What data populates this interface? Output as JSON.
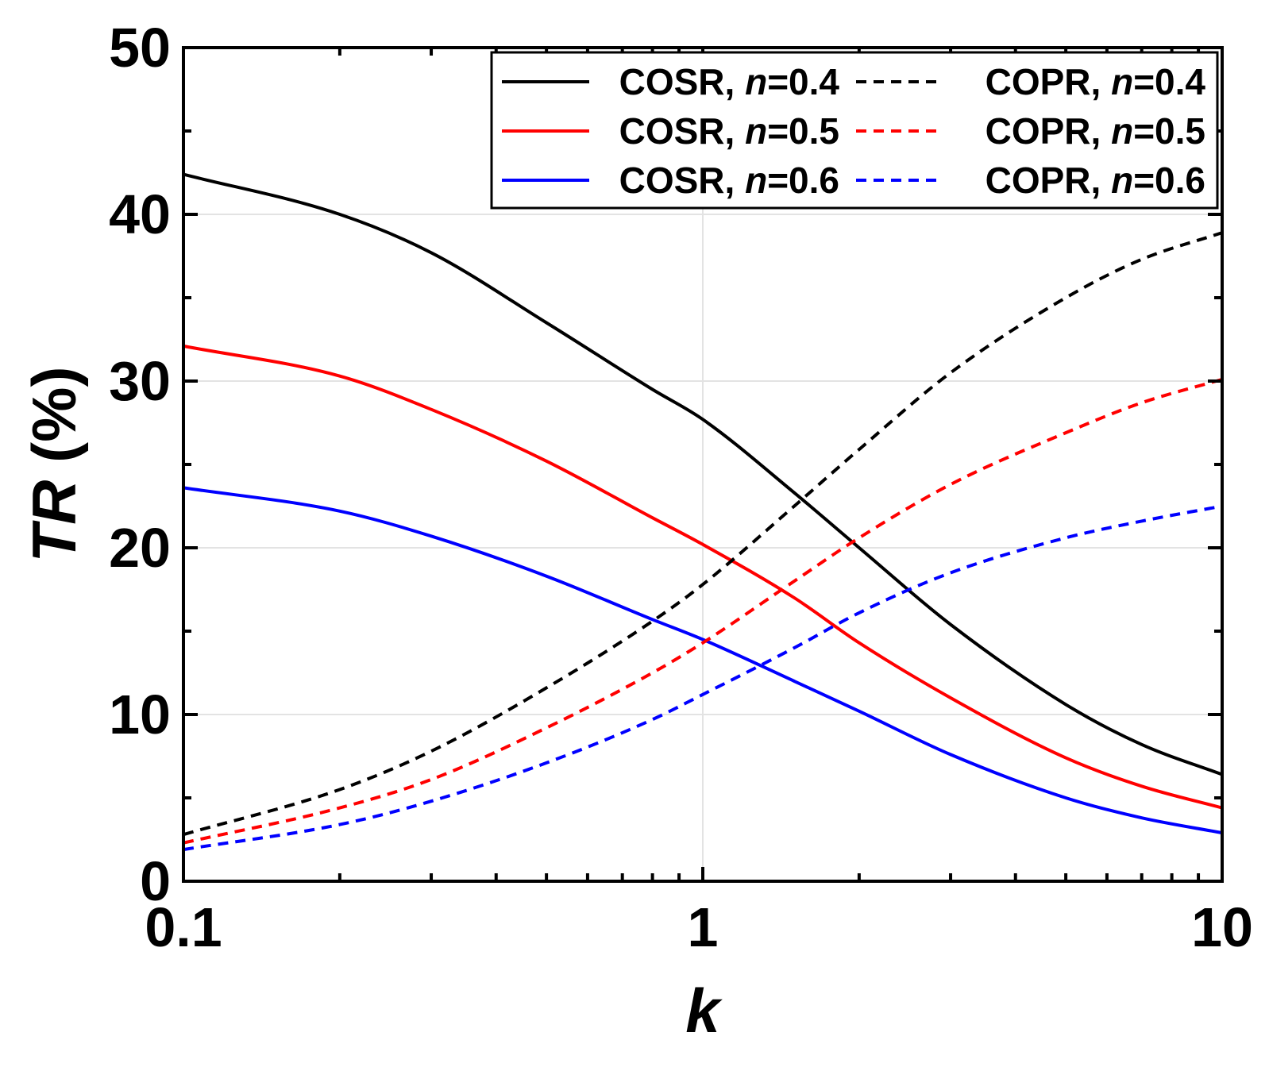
{
  "chart_data": {
    "type": "line",
    "xscale": "log",
    "xlim": [
      0.1,
      10
    ],
    "ylim": [
      0,
      50
    ],
    "xticks": [
      {
        "value": 0.1,
        "label": "0.1"
      },
      {
        "value": 1,
        "label": "1"
      },
      {
        "value": 10,
        "label": "10"
      }
    ],
    "yticks": [
      {
        "value": 0,
        "label": "0"
      },
      {
        "value": 10,
        "label": "10"
      },
      {
        "value": 20,
        "label": "20"
      },
      {
        "value": 30,
        "label": "30"
      },
      {
        "value": 40,
        "label": "40"
      },
      {
        "value": 50,
        "label": "50"
      }
    ],
    "xlabel": "k",
    "ylabel_italic": "TR",
    "ylabel_rest": " (%)",
    "grid": true,
    "legend_position": "top-right",
    "x": [
      0.1,
      0.2,
      0.3,
      0.5,
      0.8,
      1,
      1.5,
      2,
      3,
      5,
      7,
      10
    ],
    "series": [
      {
        "name": "COSR",
        "n_label": "n",
        "n_value": "=0.4",
        "color": "#000000",
        "style": "solid",
        "values": [
          42.4,
          40.0,
          37.7,
          33.5,
          29.5,
          27.7,
          23.3,
          20.0,
          15.4,
          10.6,
          8.2,
          6.4
        ]
      },
      {
        "name": "COSR",
        "n_label": "n",
        "n_value": "=0.5",
        "color": "#ff0000",
        "style": "solid",
        "values": [
          32.1,
          30.3,
          28.3,
          25.2,
          21.8,
          20.2,
          17.0,
          14.3,
          11.0,
          7.4,
          5.7,
          4.4
        ]
      },
      {
        "name": "COSR",
        "n_label": "n",
        "n_value": "=0.6",
        "color": "#0000ff",
        "style": "solid",
        "values": [
          23.6,
          22.2,
          20.7,
          18.3,
          15.7,
          14.5,
          12.0,
          10.2,
          7.6,
          5.0,
          3.8,
          2.9
        ]
      },
      {
        "name": "COPR",
        "n_label": "n",
        "n_value": "=0.4",
        "color": "#000000",
        "style": "dashed",
        "values": [
          2.8,
          5.5,
          7.8,
          11.6,
          15.6,
          17.8,
          22.5,
          25.9,
          30.5,
          35.0,
          37.3,
          38.9
        ]
      },
      {
        "name": "COPR",
        "n_label": "n",
        "n_value": "=0.5",
        "color": "#ff0000",
        "style": "dashed",
        "values": [
          2.3,
          4.4,
          6.1,
          9.2,
          12.5,
          14.3,
          18.0,
          20.6,
          23.8,
          26.9,
          28.7,
          30.1
        ]
      },
      {
        "name": "COPR",
        "n_label": "n",
        "n_value": "=0.6",
        "color": "#0000ff",
        "style": "dashed",
        "values": [
          1.9,
          3.4,
          4.8,
          7.1,
          9.7,
          11.2,
          14.0,
          16.1,
          18.5,
          20.6,
          21.6,
          22.5
        ]
      }
    ]
  }
}
